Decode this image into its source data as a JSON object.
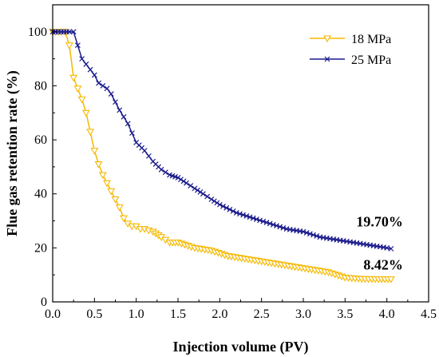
{
  "chart_data": {
    "type": "line",
    "xlabel": "Injection volume (PV)",
    "ylabel": "Flue gas retention rate (%)",
    "xlim": [
      0.0,
      4.5
    ],
    "ylim": [
      0,
      110
    ],
    "xticks": [
      "0.0",
      "0.5",
      "1.0",
      "1.5",
      "2.0",
      "2.5",
      "3.0",
      "3.5",
      "4.0",
      "4.5"
    ],
    "yticks": [
      "0",
      "20",
      "40",
      "60",
      "80",
      "100"
    ],
    "grid": false,
    "legend_position": "top-right",
    "series": [
      {
        "name": "18 MPa",
        "color": "#f5b800",
        "marker": "triangle-down-open",
        "x": [
          0.0,
          0.1,
          0.15,
          0.2,
          0.25,
          0.3,
          0.35,
          0.4,
          0.45,
          0.5,
          0.55,
          0.6,
          0.65,
          0.7,
          0.75,
          0.8,
          0.85,
          0.9,
          0.95,
          1.0,
          1.05,
          1.1,
          1.2,
          1.3,
          1.4,
          1.5,
          1.7,
          1.9,
          2.1,
          2.3,
          2.5,
          2.7,
          2.9,
          3.1,
          3.3,
          3.5,
          3.7,
          3.9,
          4.05
        ],
        "y": [
          100,
          100,
          100,
          95,
          83,
          79,
          75,
          70,
          63,
          56,
          51,
          47,
          44,
          41,
          38,
          35,
          31,
          29,
          28,
          28,
          27,
          27,
          26,
          24,
          22,
          22,
          20,
          19,
          17,
          16,
          15,
          14,
          13,
          12,
          11,
          9,
          8.5,
          8.4,
          8.42
        ]
      },
      {
        "name": "25 MPa",
        "color": "#1a1a8c",
        "marker": "x",
        "x": [
          0.0,
          0.1,
          0.2,
          0.25,
          0.3,
          0.35,
          0.4,
          0.45,
          0.5,
          0.55,
          0.6,
          0.65,
          0.7,
          0.75,
          0.8,
          0.9,
          1.0,
          1.1,
          1.2,
          1.3,
          1.4,
          1.5,
          1.6,
          1.7,
          1.8,
          1.9,
          2.0,
          2.2,
          2.4,
          2.6,
          2.8,
          3.0,
          3.2,
          3.4,
          3.6,
          3.8,
          4.0,
          4.05
        ],
        "y": [
          100,
          100,
          100,
          100,
          95,
          90,
          88,
          86,
          84,
          81,
          80,
          79,
          77,
          74,
          71,
          66,
          59,
          56,
          52,
          49,
          47,
          46,
          44,
          42,
          40,
          38,
          36,
          33,
          31,
          29,
          27,
          26,
          24,
          23,
          22,
          21,
          20,
          19.7
        ]
      }
    ],
    "annotations": [
      {
        "text": "19.70%",
        "x": 4.05,
        "y": 19.7
      },
      {
        "text": "8.42%",
        "x": 4.05,
        "y": 8.42
      }
    ]
  }
}
